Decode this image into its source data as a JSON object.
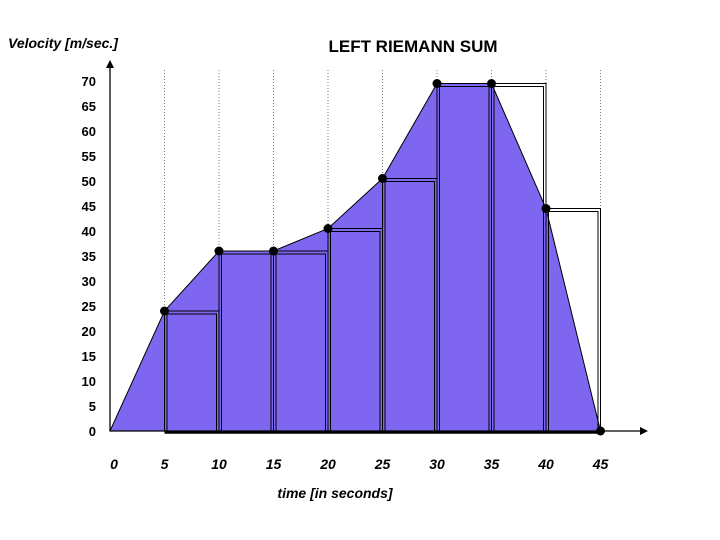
{
  "chart_data": {
    "type": "area",
    "title": "LEFT RIEMANN SUM",
    "xlabel": "time [in seconds]",
    "ylabel": "Velocity [m/sec.]",
    "x": [
      0,
      5,
      10,
      15,
      20,
      25,
      30,
      35,
      40,
      45
    ],
    "y": [
      0,
      24,
      36,
      36,
      40.5,
      50.5,
      69.5,
      69.5,
      44.5,
      0
    ],
    "xlim": [
      0,
      45
    ],
    "ylim": [
      0,
      70
    ],
    "x_ticks": [
      "0",
      "5",
      "10",
      "15",
      "20",
      "25",
      "30",
      "35",
      "40",
      "45"
    ],
    "y_ticks": [
      "70",
      "65",
      "60",
      "55",
      "50",
      "45",
      "40",
      "35",
      "30",
      "25",
      "20",
      "15",
      "10",
      "5",
      "0"
    ],
    "riemann_rectangles": {
      "method": "left",
      "width": 5,
      "intervals": [
        [
          5,
          10
        ],
        [
          10,
          15
        ],
        [
          15,
          20
        ],
        [
          20,
          25
        ],
        [
          25,
          30
        ],
        [
          30,
          35
        ],
        [
          35,
          40
        ],
        [
          40,
          45
        ]
      ],
      "heights": [
        24,
        36,
        36,
        40.5,
        50.5,
        69.5,
        69.5,
        44.5
      ]
    },
    "grid": "vertical dotted",
    "colors": {
      "fill": "#7f66f0",
      "stroke": "#000000",
      "background": "#ffffff"
    }
  }
}
